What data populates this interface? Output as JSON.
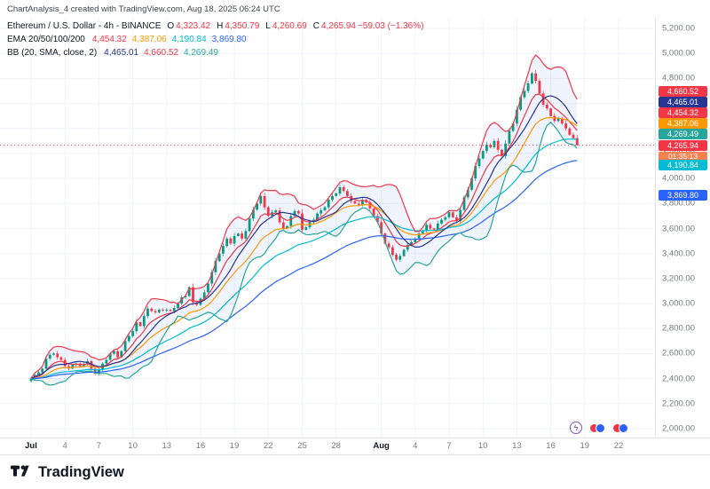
{
  "header": {
    "title": "ChartAnalysis_4 created with TradingView.com, Aug 18, 2025 06:24 UTC"
  },
  "legend": {
    "symbol": "Ethereum / U.S. Dollar - 4h - BINANCE",
    "change_color": "#f23645",
    "ohlc": {
      "o_label": "O",
      "o": "4,323.42",
      "h_label": "H",
      "h": "4,350.79",
      "l_label": "L",
      "l": "4,260.69",
      "c_label": "C",
      "c": "4,265.94",
      "change": "−59.03 (−1.36%)"
    },
    "ema": {
      "label": "EMA 20/50/100/200",
      "values": [
        {
          "text": "4,454.32",
          "color": "#f23645"
        },
        {
          "text": "4,387.06",
          "color": "#ff9800"
        },
        {
          "text": "4,190.84",
          "color": "#00bcd4"
        },
        {
          "text": "3,869.80",
          "color": "#2962ff"
        }
      ]
    },
    "bb": {
      "label": "BB (20, SMA, close, 2)",
      "values": [
        {
          "text": "4,465.01",
          "color": "#283593"
        },
        {
          "text": "4,660.52",
          "color": "#f23645"
        },
        {
          "text": "4,269.49",
          "color": "#26a69a"
        }
      ]
    }
  },
  "axis": {
    "badges": [
      {
        "label": "4,660.52",
        "value": 4660.52,
        "color": "#f23645"
      },
      {
        "label": "4,465.01",
        "value": 4465.01,
        "color": "#283593"
      },
      {
        "label": "4,454.32",
        "value": 4454.32,
        "color": "#f23645"
      },
      {
        "label": "4,387.06",
        "value": 4387.06,
        "color": "#ff9800"
      },
      {
        "label": "4,269.49",
        "value": 4269.49,
        "color": "#26a69a"
      },
      {
        "label": "4,265.94",
        "value": 4265.94,
        "color": "#f23645",
        "current": true,
        "countdown": "01:35:13",
        "countdown_color": "#f7824f"
      },
      {
        "label": "4,190.84",
        "value": 4190.84,
        "color": "#00bcd4"
      },
      {
        "label": "3,869.80",
        "value": 3869.8,
        "color": "#2962ff"
      }
    ]
  },
  "events": {
    "markers": [
      "lightning",
      "flag-pair",
      "flag-pair"
    ]
  },
  "footer": {
    "brand": "TradingView"
  },
  "chart_data": {
    "type": "candlestick",
    "title": "Ethereum / U.S. Dollar - 4h - BINANCE",
    "interval_note": "4h chart, closes approximated at 8h resolution, Jul 1 - Aug 18 2025 UTC",
    "ylim": [
      2000,
      5200
    ],
    "y_step": 200,
    "first_open": 2380,
    "closes": [
      2400,
      2430,
      2450,
      2480,
      2560,
      2590,
      2600,
      2570,
      2550,
      2500,
      2480,
      2510,
      2520,
      2500,
      2515,
      2540,
      2480,
      2440,
      2470,
      2520,
      2550,
      2600,
      2620,
      2570,
      2620,
      2700,
      2740,
      2780,
      2850,
      2820,
      2900,
      2960,
      2940,
      2930,
      2950,
      2945,
      2950,
      2940,
      2965,
      3000,
      3050,
      3060,
      3130,
      3010,
      2990,
      3040,
      3090,
      3160,
      3250,
      3340,
      3400,
      3460,
      3520,
      3480,
      3540,
      3560,
      3520,
      3580,
      3680,
      3750,
      3800,
      3860,
      3770,
      3700,
      3730,
      3745,
      3650,
      3600,
      3620,
      3700,
      3740,
      3720,
      3590,
      3610,
      3650,
      3670,
      3720,
      3745,
      3770,
      3830,
      3860,
      3880,
      3930,
      3900,
      3860,
      3820,
      3800,
      3790,
      3830,
      3810,
      3760,
      3700,
      3650,
      3560,
      3480,
      3450,
      3390,
      3350,
      3380,
      3430,
      3470,
      3490,
      3520,
      3560,
      3580,
      3630,
      3600,
      3590,
      3640,
      3670,
      3690,
      3730,
      3690,
      3660,
      3750,
      3850,
      3910,
      4000,
      4100,
      4160,
      4220,
      4270,
      4250,
      4300,
      4230,
      4180,
      4280,
      4380,
      4440,
      4550,
      4650,
      4700,
      4760,
      4840,
      4780,
      4680,
      4590,
      4560,
      4500,
      4460,
      4480,
      4440,
      4400,
      4350,
      4323.42,
      4265.94
    ],
    "last_candle": {
      "o": 4323.42,
      "h": 4350.79,
      "l": 4260.69,
      "c": 4265.94
    },
    "x_ticks": [
      {
        "label": "Jul",
        "day": 0,
        "bold": true
      },
      {
        "label": "4",
        "day": 3
      },
      {
        "label": "7",
        "day": 6
      },
      {
        "label": "10",
        "day": 9
      },
      {
        "label": "13",
        "day": 12
      },
      {
        "label": "16",
        "day": 15
      },
      {
        "label": "19",
        "day": 18
      },
      {
        "label": "22",
        "day": 21
      },
      {
        "label": "25",
        "day": 24
      },
      {
        "label": "28",
        "day": 27
      },
      {
        "label": "Aug",
        "day": 31,
        "bold": true
      },
      {
        "label": "4",
        "day": 34
      },
      {
        "label": "7",
        "day": 37
      },
      {
        "label": "10",
        "day": 40
      },
      {
        "label": "13",
        "day": 43
      },
      {
        "label": "16",
        "day": 46
      },
      {
        "label": "19",
        "day": 49
      },
      {
        "label": "22",
        "day": 52
      }
    ],
    "indicators": {
      "ema": {
        "periods": [
          20,
          50,
          100,
          200
        ],
        "colors": [
          "#f23645",
          "#ff9800",
          "#00bcd4",
          "#2962ff"
        ],
        "last": [
          4454.32,
          4387.06,
          4190.84,
          3869.8
        ]
      },
      "bb": {
        "period": 20,
        "source": "SMA, close",
        "mult": 2,
        "basis_color": "#283593",
        "upper_color": "#f23645",
        "lower_color": "#26a69a",
        "fill": "rgba(41,98,255,0.07)",
        "last": {
          "basis": 4465.01,
          "upper": 4660.52,
          "lower": 4269.49
        }
      }
    },
    "colors": {
      "up": "#089981",
      "down": "#f23645",
      "grid": "#f0f3fa",
      "last_price_line": "#f23645"
    }
  }
}
